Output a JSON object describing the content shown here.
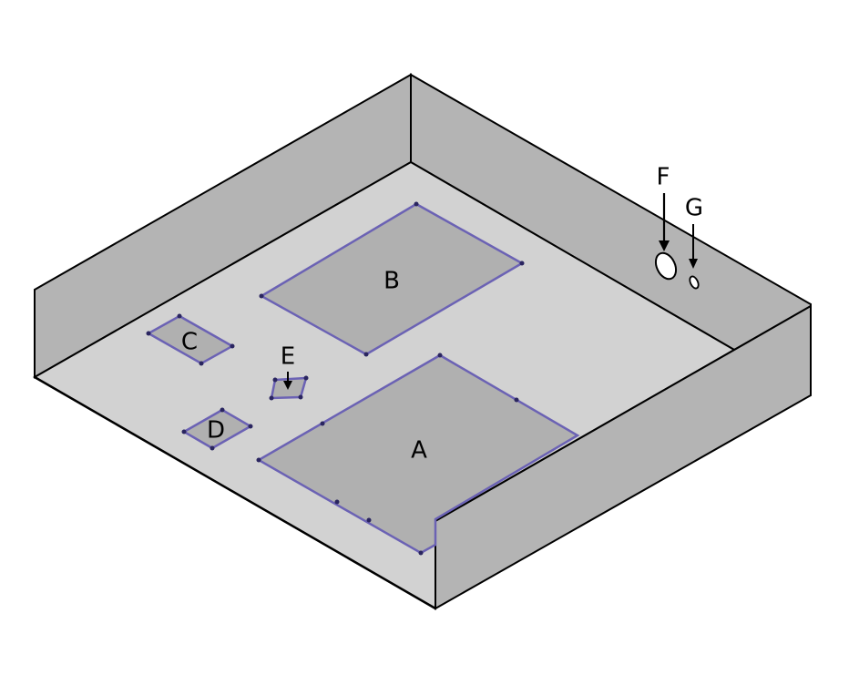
{
  "labels": {
    "a": "A",
    "b": "B",
    "c": "C",
    "d": "D",
    "e": "E",
    "f": "F",
    "g": "G"
  },
  "colors": {
    "floor": "#d2d2d2",
    "wall": "#b4b4b4",
    "region_fill": "#b0b0b0",
    "region_outline": "#6b62b4",
    "edge": "#000000",
    "hole": "#ffffff"
  }
}
